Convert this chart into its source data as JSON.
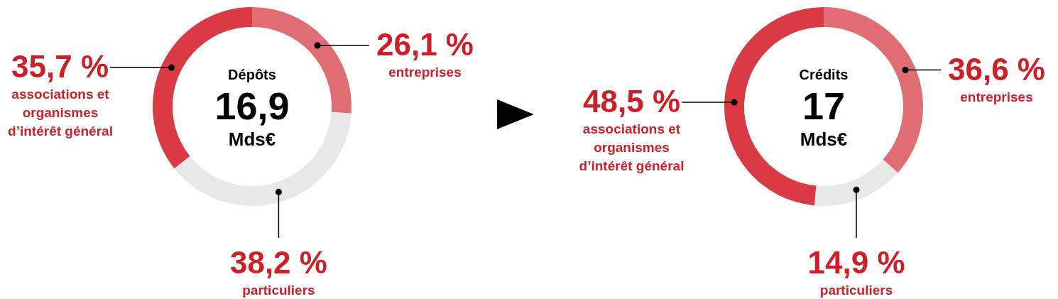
{
  "chart_data": [
    {
      "type": "donut",
      "categories": [
        "entreprises",
        "particuliers",
        "associations et organismes d’intérêt général"
      ],
      "values": [
        26.1,
        38.2,
        35.7
      ],
      "colors": [
        "#e06c74",
        "#e8e8e8",
        "#d93a44"
      ],
      "value_labels": [
        "26,1 %",
        "38,2 %",
        "35,7 %"
      ],
      "annotations": [
        "Dépôts",
        "16,9",
        "Mds€"
      ]
    },
    {
      "type": "donut",
      "categories": [
        "entreprises",
        "particuliers",
        "associations et organismes d’intérêt général"
      ],
      "values": [
        36.6,
        14.9,
        48.5
      ],
      "colors": [
        "#e06c74",
        "#e8e8e8",
        "#d93a44"
      ],
      "value_labels": [
        "36,6 %",
        "14,9 %",
        "48,5 %"
      ],
      "annotations": [
        "Crédits",
        "17",
        "Mds€"
      ]
    }
  ]
}
